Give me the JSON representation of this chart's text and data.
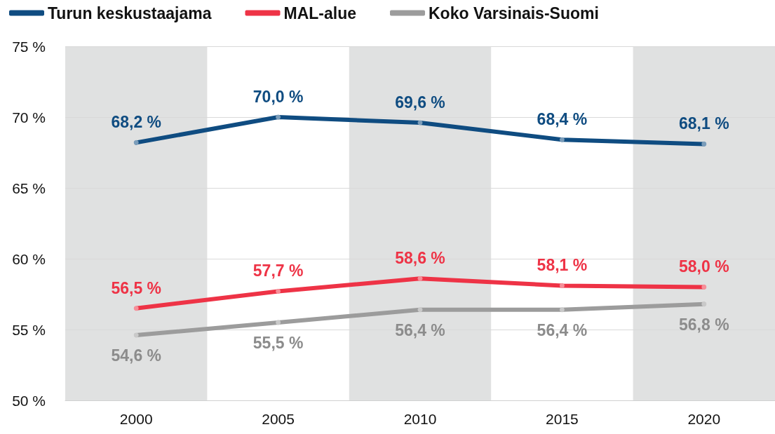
{
  "chart_data": {
    "type": "line",
    "categories": [
      "2000",
      "2005",
      "2010",
      "2015",
      "2020"
    ],
    "series": [
      {
        "name": "Turun keskustaajama",
        "color": "#0f4c81",
        "values": [
          68.2,
          70.0,
          69.6,
          68.4,
          68.1
        ],
        "value_labels": [
          "68,2 %",
          "70,0 %",
          "69,6 %",
          "68,4 %",
          "68,1 %"
        ]
      },
      {
        "name": "MAL-alue",
        "color": "#ee3346",
        "values": [
          56.5,
          57.7,
          58.6,
          58.1,
          58.0
        ],
        "value_labels": [
          "56,5 %",
          "57,7 %",
          "58,6 %",
          "58,1 %",
          "58,0 %"
        ]
      },
      {
        "name": "Koko Varsinais-Suomi",
        "color": "#9c9c9c",
        "values": [
          54.6,
          55.5,
          56.4,
          56.4,
          56.8
        ],
        "value_labels": [
          "54,6 %",
          "55,5 %",
          "56,4 %",
          "56,4 %",
          "56,8 %"
        ]
      }
    ],
    "ylim": [
      50,
      75
    ],
    "yticks": [
      {
        "value": 50,
        "label": "50 %"
      },
      {
        "value": 55,
        "label": "55 %"
      },
      {
        "value": 60,
        "label": "60 %"
      },
      {
        "value": 65,
        "label": "65 %"
      },
      {
        "value": 70,
        "label": "70 %"
      },
      {
        "value": 75,
        "label": "75 %"
      }
    ],
    "bands": [
      {
        "axis": "x",
        "from": "2000",
        "to": "2000",
        "color": "#e0e1e1"
      },
      {
        "axis": "x",
        "from": "2010",
        "to": "2010",
        "color": "#e0e1e1"
      },
      {
        "axis": "x",
        "from": "2020",
        "to": "2020",
        "color": "#e0e1e1"
      }
    ],
    "grid": "y",
    "legend": "top left",
    "marker": "circle",
    "line_style": "solid"
  }
}
